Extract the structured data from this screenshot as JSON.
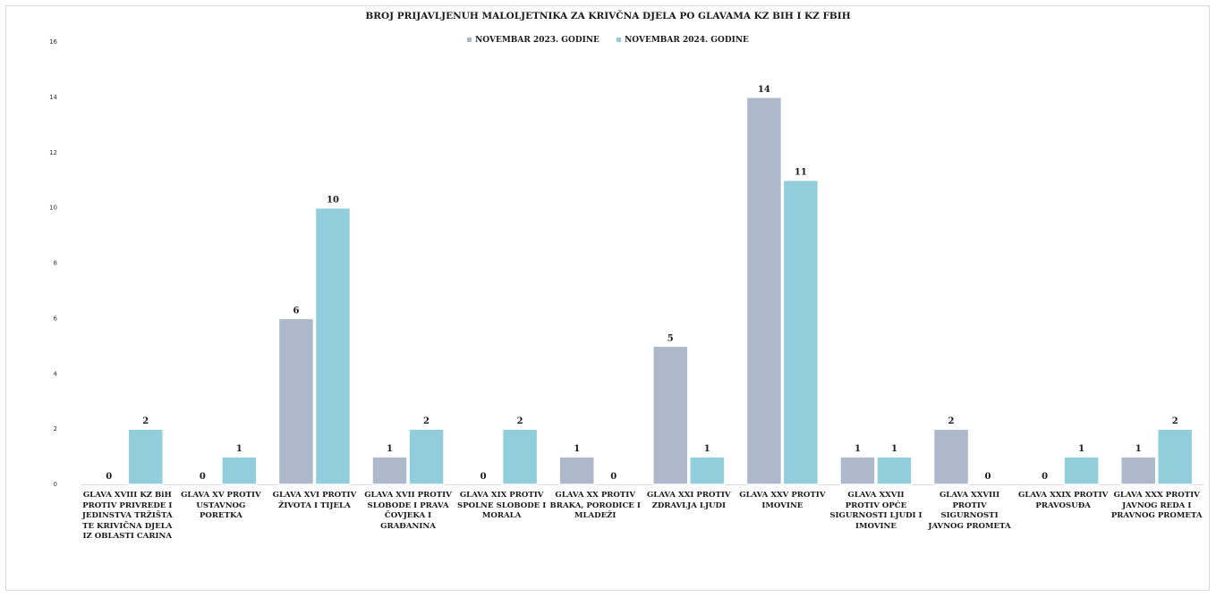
{
  "chart_data": {
    "type": "bar",
    "title": "BROJ PRIJAVLJENUH MALOLJETNIKA ZA KRIVČNA DJELA PO GLAVAMA KZ BIH I KZ FBIH",
    "categories": [
      "GLAVA XVIII KZ BiH PROTIV PRIVREDE I JEDINSTVA TRŽIŠTA TE KRIVIČNA DJELA IZ OBLASTI CARINA",
      "GLAVA XV PROTIV USTAVNOG PORETKA",
      "GLAVA XVI PROTIV ŽIVOTA I TIJELA",
      "GLAVA XVII PROTIV SLOBODE I PRAVA ČOVJEKA I GRAĐANINA",
      "GLAVA  XIX PROTIV SPOLNE SLOBODE I MORALA",
      "GLAVA  XX PROTIV BRAKA, PORODICE I MLADEŽI",
      "GLAVA  XXI PROTIV ZDRAVLJA  LJUDI",
      "GLAVA XXV PROTIV IMOVINE",
      "GLAVA XXVII PROTIV OPĆE SIGURNOSTI LJUDI I IMOVINE",
      "GLAVA XXVIII PROTIV SIGURNOSTI JAVNOG PROMETA",
      "GLAVA XXIX PROTIV PRAVOSUĐA",
      "GLAVA XXX PROTIV JAVNOG REDA  I PRAVNOG PROMETA"
    ],
    "series": [
      {
        "name": "NOVEMBAR  2023. GODINE",
        "color": "#adb9ca",
        "values": [
          0,
          0,
          6,
          1,
          0,
          1,
          5,
          14,
          1,
          2,
          0,
          1
        ]
      },
      {
        "name": "NOVEMBAR 2024. GODINE",
        "color": "#92cddc",
        "values": [
          2,
          1,
          10,
          2,
          2,
          0,
          1,
          11,
          1,
          0,
          1,
          2
        ]
      }
    ],
    "ylim": [
      0,
      16
    ],
    "yticks": [
      "0",
      "2",
      "4",
      "6",
      "8",
      "10",
      "12",
      "14",
      "16"
    ],
    "xlabel": "",
    "ylabel": "",
    "grid": false,
    "legend_position": "top"
  }
}
